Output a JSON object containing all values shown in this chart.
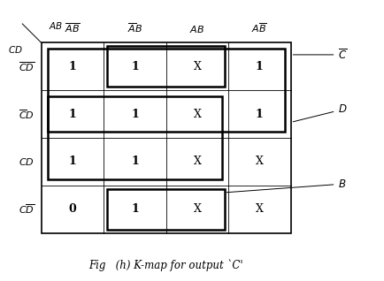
{
  "title": "Fig   (h) K-map for output `C'",
  "col_labels": [
    "$\\overline{A}\\overline{B}$",
    "$\\overline{A}B$",
    "$AB$",
    "$A\\overline{B}$"
  ],
  "row_labels": [
    "$\\overline{C}\\overline{D}$",
    "$\\overline{C}D$",
    "$CD$",
    "$C\\overline{D}$"
  ],
  "values": [
    [
      "1",
      "1",
      "X",
      "1"
    ],
    [
      "1",
      "1",
      "X",
      "1"
    ],
    [
      "1",
      "1",
      "X",
      "X"
    ],
    [
      "0",
      "1",
      "X",
      "X"
    ]
  ],
  "bg_color": "#ffffff",
  "cell_font_size": 9,
  "label_font_size": 8,
  "title_font_size": 8.5
}
